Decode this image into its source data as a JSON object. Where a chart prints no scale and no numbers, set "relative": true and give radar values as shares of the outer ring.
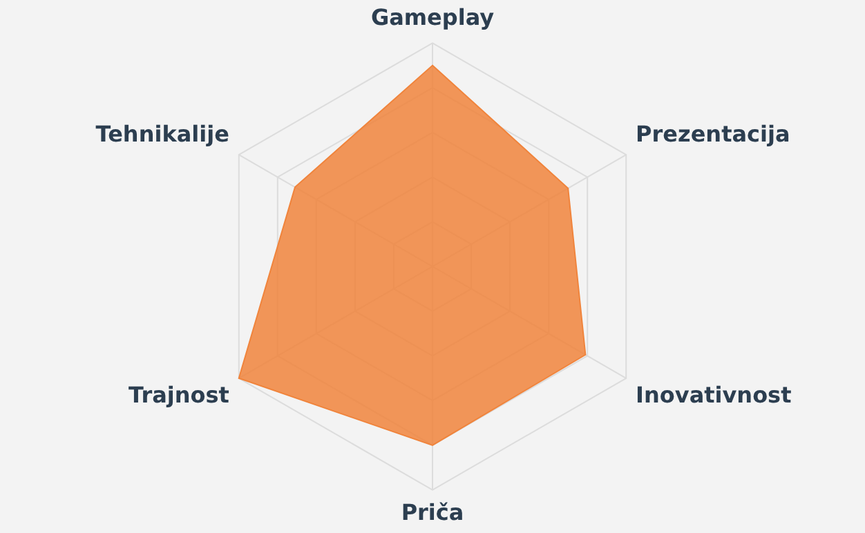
{
  "chart_data": {
    "type": "radar",
    "relative": true,
    "grid": true,
    "categories": [
      "Gameplay",
      "Prezentacija",
      "Inovativnost",
      "Priča",
      "Trajnost",
      "Tehnikalije"
    ],
    "series": [
      {
        "color": "#f0843c",
        "values": [
          0.9,
          0.7,
          0.79,
          0.8,
          1.0,
          0.71
        ]
      }
    ]
  }
}
